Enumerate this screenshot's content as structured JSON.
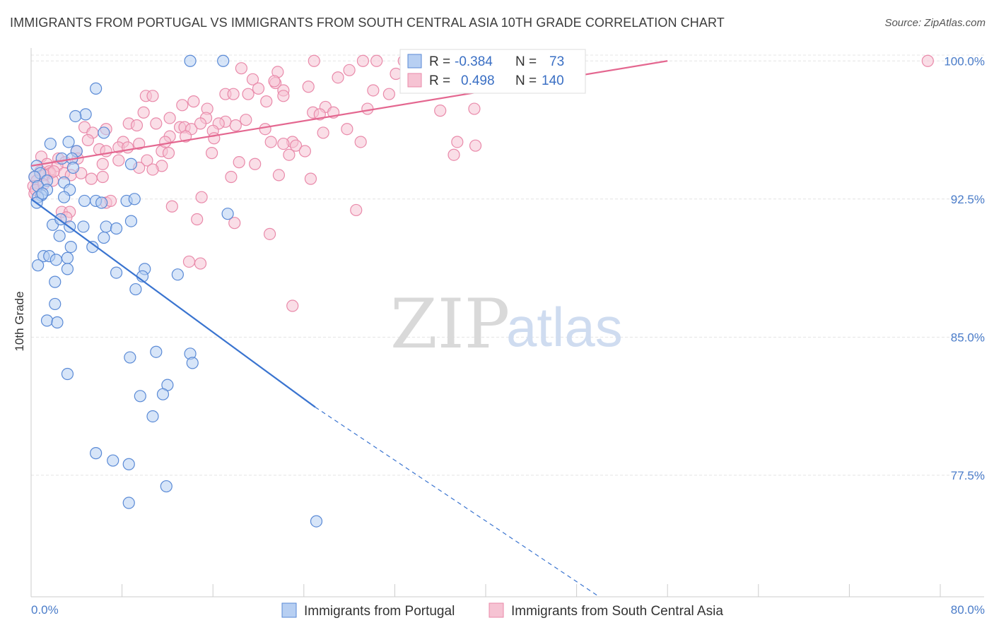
{
  "header": {
    "title": "IMMIGRANTS FROM PORTUGAL VS IMMIGRANTS FROM SOUTH CENTRAL ASIA 10TH GRADE CORRELATION CHART",
    "source": "Source: ZipAtlas.com"
  },
  "watermark": {
    "zip": "ZIP",
    "atlas": "atlas"
  },
  "colors": {
    "blue_fill": "#b7cff2",
    "blue_stroke": "#5a8ad6",
    "blue_line": "#3a74d0",
    "pink_fill": "#f6c3d3",
    "pink_stroke": "#e98aaa",
    "pink_line": "#e46790",
    "grid": "#e4e4e4",
    "tick_label": "#4a7cc9"
  },
  "legend": {
    "rows": [
      {
        "r_label": "R =",
        "r_value": "-0.384",
        "n_label": "N =",
        "n_value": "73"
      },
      {
        "r_label": "R =",
        "r_value": "0.498",
        "n_label": "N =",
        "n_value": "140"
      }
    ]
  },
  "bottom_legend": {
    "items": [
      {
        "label": "Immigrants from Portugal"
      },
      {
        "label": "Immigrants from South Central Asia"
      }
    ]
  },
  "chart_data": {
    "type": "scatter",
    "title": "IMMIGRANTS FROM PORTUGAL VS IMMIGRANTS FROM SOUTH CENTRAL ASIA 10TH GRADE CORRELATION CHART",
    "xlabel": "",
    "ylabel": "10th Grade",
    "xlim": [
      0,
      80
    ],
    "ylim": [
      70.9,
      100.7
    ],
    "x_tick_labels": [
      "0.0%",
      "80.0%"
    ],
    "y_ticks": [
      77.5,
      85.0,
      92.5,
      100.0
    ],
    "y_tick_labels": [
      "77.5%",
      "85.0%",
      "92.5%",
      "100.0%"
    ],
    "grid": true,
    "legend_position": "top-center",
    "series": [
      {
        "name": "Immigrants from Portugal",
        "color": "#5a8ad6",
        "r": -0.384,
        "n": 73,
        "trend": {
          "x0": 0,
          "y0": 92.5,
          "x1_solid": 25,
          "y1_solid": 81.2,
          "x1_dashed": 50,
          "y1_dashed": 70.9
        },
        "points": [
          [
            14.0,
            100.0
          ],
          [
            16.9,
            100.0
          ],
          [
            5.7,
            98.5
          ],
          [
            4.8,
            97.1
          ],
          [
            3.9,
            97.0
          ],
          [
            6.4,
            96.1
          ],
          [
            3.3,
            95.6
          ],
          [
            1.7,
            95.5
          ],
          [
            4.0,
            95.1
          ],
          [
            2.7,
            94.7
          ],
          [
            3.6,
            94.7
          ],
          [
            8.8,
            94.4
          ],
          [
            0.5,
            94.3
          ],
          [
            3.7,
            94.2
          ],
          [
            0.8,
            93.9
          ],
          [
            0.3,
            93.7
          ],
          [
            1.4,
            93.5
          ],
          [
            2.9,
            93.4
          ],
          [
            0.6,
            93.2
          ],
          [
            1.4,
            93.0
          ],
          [
            3.4,
            93.0
          ],
          [
            0.9,
            92.7
          ],
          [
            0.6,
            92.6
          ],
          [
            2.9,
            92.6
          ],
          [
            4.7,
            92.4
          ],
          [
            5.7,
            92.4
          ],
          [
            8.4,
            92.4
          ],
          [
            6.2,
            92.3
          ],
          [
            9.1,
            92.5
          ],
          [
            0.5,
            92.3
          ],
          [
            17.3,
            91.7
          ],
          [
            8.8,
            91.3
          ],
          [
            1.9,
            91.1
          ],
          [
            3.4,
            91.0
          ],
          [
            4.6,
            91.0
          ],
          [
            6.6,
            91.0
          ],
          [
            7.5,
            90.9
          ],
          [
            2.5,
            90.5
          ],
          [
            6.4,
            90.4
          ],
          [
            3.5,
            89.9
          ],
          [
            5.4,
            89.9
          ],
          [
            1.1,
            89.4
          ],
          [
            1.6,
            89.4
          ],
          [
            3.2,
            89.3
          ],
          [
            2.2,
            89.2
          ],
          [
            0.6,
            88.9
          ],
          [
            10.0,
            88.7
          ],
          [
            3.2,
            88.7
          ],
          [
            7.5,
            88.5
          ],
          [
            12.9,
            88.4
          ],
          [
            9.8,
            88.3
          ],
          [
            2.1,
            88.0
          ],
          [
            9.2,
            87.6
          ],
          [
            2.1,
            86.8
          ],
          [
            1.4,
            85.9
          ],
          [
            2.3,
            85.8
          ],
          [
            11.0,
            84.2
          ],
          [
            14.0,
            84.1
          ],
          [
            8.7,
            83.9
          ],
          [
            14.2,
            83.6
          ],
          [
            3.2,
            83.0
          ],
          [
            12.0,
            82.4
          ],
          [
            9.6,
            81.8
          ],
          [
            11.6,
            81.9
          ],
          [
            10.7,
            80.7
          ],
          [
            5.7,
            78.7
          ],
          [
            7.2,
            78.3
          ],
          [
            8.6,
            78.1
          ],
          [
            11.9,
            76.9
          ],
          [
            8.6,
            76.0
          ],
          [
            25.1,
            75.0
          ],
          [
            2.6,
            91.4
          ],
          [
            1.0,
            92.8
          ]
        ]
      },
      {
        "name": "Immigrants from South Central Asia",
        "color": "#e98aaa",
        "r": 0.498,
        "n": 140,
        "trend": {
          "x0": 0,
          "y0": 94.3,
          "x1": 56,
          "y1": 100.0
        },
        "points": [
          [
            24.9,
            100.0
          ],
          [
            29.2,
            100.0
          ],
          [
            30.4,
            100.0
          ],
          [
            32.8,
            100.0
          ],
          [
            35.9,
            100.0
          ],
          [
            41.4,
            100.0
          ],
          [
            78.9,
            100.0
          ],
          [
            18.5,
            99.6
          ],
          [
            21.7,
            99.4
          ],
          [
            28.0,
            99.5
          ],
          [
            32.1,
            99.3
          ],
          [
            34.0,
            99.6
          ],
          [
            36.0,
            99.2
          ],
          [
            19.5,
            99.0
          ],
          [
            21.5,
            98.8
          ],
          [
            27.0,
            99.1
          ],
          [
            30.1,
            98.4
          ],
          [
            33.5,
            98.6
          ],
          [
            35.4,
            98.7
          ],
          [
            20.0,
            98.5
          ],
          [
            22.2,
            98.4
          ],
          [
            24.4,
            98.6
          ],
          [
            17.1,
            98.2
          ],
          [
            17.8,
            98.2
          ],
          [
            19.1,
            98.2
          ],
          [
            22.2,
            98.1
          ],
          [
            31.5,
            98.2
          ],
          [
            10.1,
            98.1
          ],
          [
            10.7,
            98.1
          ],
          [
            14.3,
            97.8
          ],
          [
            20.7,
            97.8
          ],
          [
            13.3,
            97.6
          ],
          [
            15.5,
            97.4
          ],
          [
            25.9,
            97.5
          ],
          [
            29.6,
            97.4
          ],
          [
            36.0,
            97.3
          ],
          [
            39.0,
            97.4
          ],
          [
            24.8,
            97.2
          ],
          [
            25.4,
            97.1
          ],
          [
            9.9,
            97.2
          ],
          [
            12.2,
            96.9
          ],
          [
            15.4,
            96.9
          ],
          [
            17.1,
            96.7
          ],
          [
            18.9,
            96.8
          ],
          [
            16.5,
            96.6
          ],
          [
            8.6,
            96.6
          ],
          [
            11.0,
            96.6
          ],
          [
            13.1,
            96.4
          ],
          [
            13.5,
            96.4
          ],
          [
            14.1,
            96.3
          ],
          [
            9.3,
            96.5
          ],
          [
            16.0,
            96.2
          ],
          [
            6.6,
            96.3
          ],
          [
            20.6,
            96.3
          ],
          [
            25.7,
            96.1
          ],
          [
            4.7,
            96.4
          ],
          [
            5.4,
            96.1
          ],
          [
            12.2,
            95.9
          ],
          [
            13.6,
            95.9
          ],
          [
            16.1,
            95.8
          ],
          [
            21.1,
            95.6
          ],
          [
            23.0,
            95.6
          ],
          [
            29.0,
            95.6
          ],
          [
            37.5,
            95.6
          ],
          [
            39.1,
            95.4
          ],
          [
            5.0,
            95.7
          ],
          [
            8.1,
            95.6
          ],
          [
            9.5,
            95.5
          ],
          [
            22.2,
            95.5
          ],
          [
            23.3,
            95.4
          ],
          [
            7.7,
            95.3
          ],
          [
            6.0,
            95.2
          ],
          [
            4.0,
            95.1
          ],
          [
            6.6,
            95.1
          ],
          [
            11.5,
            95.1
          ],
          [
            12.1,
            95.0
          ],
          [
            15.9,
            95.0
          ],
          [
            22.7,
            94.9
          ],
          [
            37.2,
            94.9
          ],
          [
            0.9,
            94.8
          ],
          [
            2.4,
            94.7
          ],
          [
            4.1,
            94.7
          ],
          [
            7.7,
            94.6
          ],
          [
            10.2,
            94.6
          ],
          [
            11.5,
            94.3
          ],
          [
            18.3,
            94.5
          ],
          [
            3.0,
            94.5
          ],
          [
            6.3,
            94.4
          ],
          [
            9.5,
            94.2
          ],
          [
            10.7,
            94.1
          ],
          [
            19.7,
            94.4
          ],
          [
            1.4,
            94.4
          ],
          [
            2.3,
            94.3
          ],
          [
            1.6,
            94.0
          ],
          [
            0.8,
            94.0
          ],
          [
            1.7,
            93.9
          ],
          [
            2.9,
            93.9
          ],
          [
            1.2,
            93.8
          ],
          [
            0.3,
            93.7
          ],
          [
            3.5,
            93.8
          ],
          [
            5.3,
            93.6
          ],
          [
            6.3,
            93.7
          ],
          [
            17.6,
            93.7
          ],
          [
            24.6,
            93.6
          ],
          [
            0.5,
            93.5
          ],
          [
            1.9,
            93.5
          ],
          [
            0.2,
            93.2
          ],
          [
            15.0,
            92.6
          ],
          [
            12.4,
            92.1
          ],
          [
            28.6,
            91.9
          ],
          [
            2.7,
            91.8
          ],
          [
            3.4,
            91.8
          ],
          [
            6.6,
            92.3
          ],
          [
            14.6,
            91.4
          ],
          [
            17.9,
            91.2
          ],
          [
            21.0,
            90.6
          ],
          [
            13.9,
            89.1
          ],
          [
            14.9,
            89.0
          ],
          [
            23.0,
            86.7
          ],
          [
            0.3,
            92.8
          ],
          [
            0.4,
            93.0
          ],
          [
            1.1,
            93.3
          ],
          [
            2.0,
            94.0
          ],
          [
            4.4,
            93.9
          ],
          [
            3.1,
            91.5
          ],
          [
            7.0,
            92.4
          ],
          [
            21.4,
            98.9
          ],
          [
            18.0,
            96.5
          ],
          [
            26.6,
            97.2
          ],
          [
            27.8,
            96.3
          ],
          [
            11.8,
            95.6
          ],
          [
            14.9,
            96.6
          ],
          [
            24.1,
            95.1
          ],
          [
            21.8,
            93.8
          ],
          [
            8.5,
            95.3
          ]
        ]
      }
    ]
  }
}
